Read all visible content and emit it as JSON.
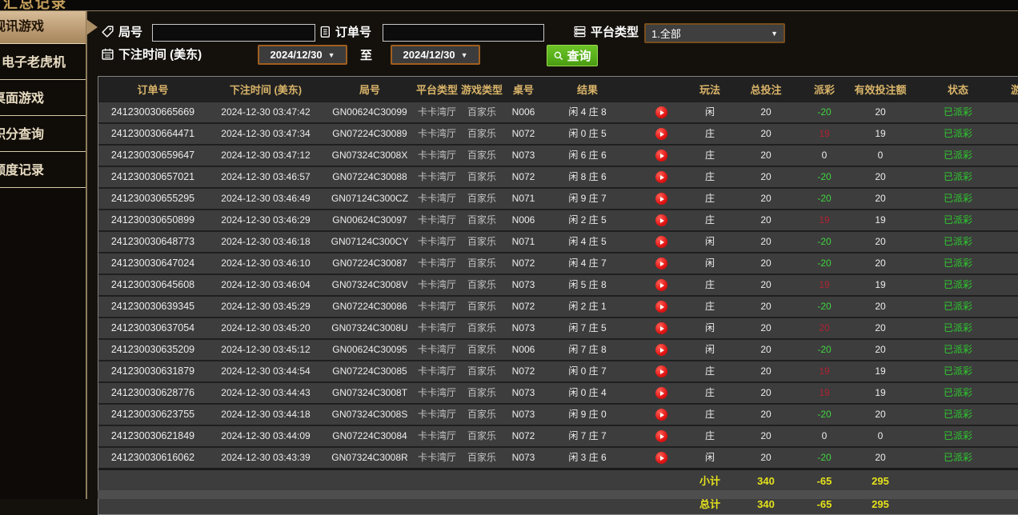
{
  "page": {
    "partial_title": "汇总记录"
  },
  "colors": {
    "accent_gold": "#d9b469",
    "win_red": "#b02233",
    "loss_green": "#3fd43f",
    "status_green": "#2fcb2f",
    "total_yellow": "#e4e11c",
    "date_border": "#a15e1e",
    "query_green": "#58b11c",
    "sidebar_line": "#8f7b5b"
  },
  "sidebar": {
    "items": [
      {
        "label": "视讯游戏",
        "active": true
      },
      {
        "label": "电子老虎机",
        "active": false
      },
      {
        "label": "桌面游戏",
        "active": false
      },
      {
        "label": "积分查询",
        "active": false
      },
      {
        "label": "额度记录",
        "active": false
      }
    ]
  },
  "filters": {
    "round_label": "局号",
    "round_value": "",
    "order_label": "订单号",
    "order_value": "",
    "platform_label": "平台类型",
    "platform_value": "1.全部",
    "time_label": "下注时间 (美东)",
    "date_from": "2024/12/30",
    "to_label": "至",
    "date_to": "2024/12/30",
    "query_label": "查询"
  },
  "table": {
    "headers": [
      "订单号",
      "下注时间 (美东)",
      "局号",
      "平台类型",
      "游戏类型",
      "桌号",
      "结果",
      "",
      "玩法",
      "总投注",
      "派彩",
      "有效投注额",
      "状态",
      "游"
    ],
    "rows": [
      {
        "order": "241230030665669",
        "time": "2024-12-30 03:47:42",
        "round": "GN00624C30099",
        "platform": "卡卡湾厅",
        "game": "百家乐",
        "table_no": "N006",
        "result": "闲 4 庄 8",
        "bet": "闲",
        "total": "20",
        "payout": "-20",
        "sign": "neg",
        "valid": "20",
        "status": "已派彩"
      },
      {
        "order": "241230030664471",
        "time": "2024-12-30 03:47:34",
        "round": "GN07224C30089",
        "platform": "卡卡湾厅",
        "game": "百家乐",
        "table_no": "N072",
        "result": "闲 0 庄 5",
        "bet": "庄",
        "total": "20",
        "payout": "19",
        "sign": "pos",
        "valid": "19",
        "status": "已派彩"
      },
      {
        "order": "241230030659647",
        "time": "2024-12-30 03:47:12",
        "round": "GN07324C3008X",
        "platform": "卡卡湾厅",
        "game": "百家乐",
        "table_no": "N073",
        "result": "闲 6 庄 6",
        "bet": "庄",
        "total": "20",
        "payout": "0",
        "sign": "zero",
        "valid": "0",
        "status": "已派彩"
      },
      {
        "order": "241230030657021",
        "time": "2024-12-30 03:46:57",
        "round": "GN07224C30088",
        "platform": "卡卡湾厅",
        "game": "百家乐",
        "table_no": "N072",
        "result": "闲 8 庄 6",
        "bet": "庄",
        "total": "20",
        "payout": "-20",
        "sign": "neg",
        "valid": "20",
        "status": "已派彩"
      },
      {
        "order": "241230030655295",
        "time": "2024-12-30 03:46:49",
        "round": "GN07124C300CZ",
        "platform": "卡卡湾厅",
        "game": "百家乐",
        "table_no": "N071",
        "result": "闲 9 庄 7",
        "bet": "庄",
        "total": "20",
        "payout": "-20",
        "sign": "neg",
        "valid": "20",
        "status": "已派彩"
      },
      {
        "order": "241230030650899",
        "time": "2024-12-30 03:46:29",
        "round": "GN00624C30097",
        "platform": "卡卡湾厅",
        "game": "百家乐",
        "table_no": "N006",
        "result": "闲 2 庄 5",
        "bet": "庄",
        "total": "20",
        "payout": "19",
        "sign": "pos",
        "valid": "19",
        "status": "已派彩"
      },
      {
        "order": "241230030648773",
        "time": "2024-12-30 03:46:18",
        "round": "GN07124C300CY",
        "platform": "卡卡湾厅",
        "game": "百家乐",
        "table_no": "N071",
        "result": "闲 4 庄 5",
        "bet": "闲",
        "total": "20",
        "payout": "-20",
        "sign": "neg",
        "valid": "20",
        "status": "已派彩"
      },
      {
        "order": "241230030647024",
        "time": "2024-12-30 03:46:10",
        "round": "GN07224C30087",
        "platform": "卡卡湾厅",
        "game": "百家乐",
        "table_no": "N072",
        "result": "闲 4 庄 7",
        "bet": "闲",
        "total": "20",
        "payout": "-20",
        "sign": "neg",
        "valid": "20",
        "status": "已派彩"
      },
      {
        "order": "241230030645608",
        "time": "2024-12-30 03:46:04",
        "round": "GN07324C3008V",
        "platform": "卡卡湾厅",
        "game": "百家乐",
        "table_no": "N073",
        "result": "闲 5 庄 8",
        "bet": "庄",
        "total": "20",
        "payout": "19",
        "sign": "pos",
        "valid": "19",
        "status": "已派彩"
      },
      {
        "order": "241230030639345",
        "time": "2024-12-30 03:45:29",
        "round": "GN07224C30086",
        "platform": "卡卡湾厅",
        "game": "百家乐",
        "table_no": "N072",
        "result": "闲 2 庄 1",
        "bet": "庄",
        "total": "20",
        "payout": "-20",
        "sign": "neg",
        "valid": "20",
        "status": "已派彩"
      },
      {
        "order": "241230030637054",
        "time": "2024-12-30 03:45:20",
        "round": "GN07324C3008U",
        "platform": "卡卡湾厅",
        "game": "百家乐",
        "table_no": "N073",
        "result": "闲 7 庄 5",
        "bet": "闲",
        "total": "20",
        "payout": "20",
        "sign": "pos",
        "valid": "20",
        "status": "已派彩"
      },
      {
        "order": "241230030635209",
        "time": "2024-12-30 03:45:12",
        "round": "GN00624C30095",
        "platform": "卡卡湾厅",
        "game": "百家乐",
        "table_no": "N006",
        "result": "闲 7 庄 8",
        "bet": "闲",
        "total": "20",
        "payout": "-20",
        "sign": "neg",
        "valid": "20",
        "status": "已派彩"
      },
      {
        "order": "241230030631879",
        "time": "2024-12-30 03:44:54",
        "round": "GN07224C30085",
        "platform": "卡卡湾厅",
        "game": "百家乐",
        "table_no": "N072",
        "result": "闲 0 庄 7",
        "bet": "庄",
        "total": "20",
        "payout": "19",
        "sign": "pos",
        "valid": "19",
        "status": "已派彩"
      },
      {
        "order": "241230030628776",
        "time": "2024-12-30 03:44:43",
        "round": "GN07324C3008T",
        "platform": "卡卡湾厅",
        "game": "百家乐",
        "table_no": "N073",
        "result": "闲 0 庄 4",
        "bet": "庄",
        "total": "20",
        "payout": "19",
        "sign": "pos",
        "valid": "19",
        "status": "已派彩"
      },
      {
        "order": "241230030623755",
        "time": "2024-12-30 03:44:18",
        "round": "GN07324C3008S",
        "platform": "卡卡湾厅",
        "game": "百家乐",
        "table_no": "N073",
        "result": "闲 9 庄 0",
        "bet": "庄",
        "total": "20",
        "payout": "-20",
        "sign": "neg",
        "valid": "20",
        "status": "已派彩"
      },
      {
        "order": "241230030621849",
        "time": "2024-12-30 03:44:09",
        "round": "GN07224C30084",
        "platform": "卡卡湾厅",
        "game": "百家乐",
        "table_no": "N072",
        "result": "闲 7 庄 7",
        "bet": "庄",
        "total": "20",
        "payout": "0",
        "sign": "zero",
        "valid": "0",
        "status": "已派彩"
      },
      {
        "order": "241230030616062",
        "time": "2024-12-30 03:43:39",
        "round": "GN07324C3008R",
        "platform": "卡卡湾厅",
        "game": "百家乐",
        "table_no": "N073",
        "result": "闲 3 庄 6",
        "bet": "闲",
        "total": "20",
        "payout": "-20",
        "sign": "neg",
        "valid": "20",
        "status": "已派彩"
      }
    ],
    "subtotal": {
      "label": "小计",
      "total": "340",
      "payout": "-65",
      "valid": "295"
    },
    "total": {
      "label": "总计",
      "total": "340",
      "payout": "-65",
      "valid": "295"
    }
  }
}
